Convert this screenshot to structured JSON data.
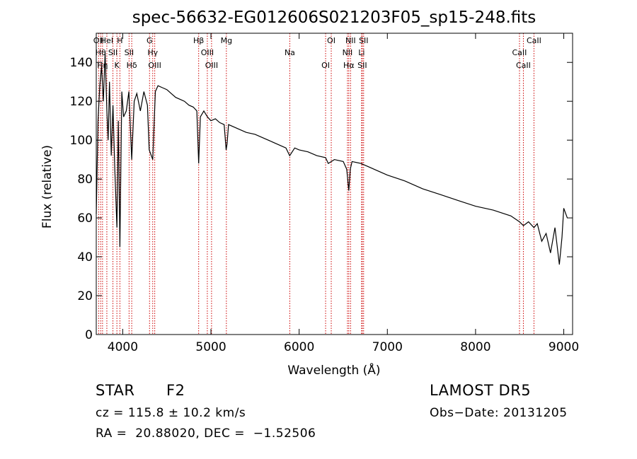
{
  "chart_data": {
    "type": "line",
    "title": "spec-56632-EG012606S021203F05_sp15-248.fits",
    "xlabel": "Wavelength (Å)",
    "ylabel": "Flux (relative)",
    "xlim": [
      3700,
      9100
    ],
    "ylim": [
      0,
      155
    ],
    "xticks": [
      4000,
      5000,
      6000,
      7000,
      8000,
      9000
    ],
    "yticks": [
      0,
      20,
      40,
      60,
      80,
      100,
      120,
      140
    ],
    "grid": false,
    "series": [
      {
        "x": [
          3700,
          3720,
          3740,
          3760,
          3780,
          3800,
          3820,
          3835,
          3850,
          3870,
          3889,
          3910,
          3934,
          3950,
          3968,
          3990,
          4010,
          4040,
          4070,
          4102,
          4130,
          4160,
          4200,
          4240,
          4280,
          4300,
          4340,
          4370,
          4400,
          4450,
          4500,
          4550,
          4600,
          4650,
          4700,
          4750,
          4800,
          4840,
          4861,
          4880,
          4920,
          4960,
          5000,
          5050,
          5100,
          5150,
          5172,
          5183,
          5200,
          5300,
          5400,
          5500,
          5600,
          5700,
          5800,
          5850,
          5893,
          5950,
          6000,
          6100,
          6200,
          6300,
          6330,
          6400,
          6500,
          6540,
          6563,
          6580,
          6600,
          6700,
          6800,
          6900,
          7000,
          7200,
          7400,
          7600,
          7800,
          8000,
          8200,
          8400,
          8498,
          8542,
          8600,
          8662,
          8700,
          8750,
          8800,
          8850,
          8900,
          8950,
          8980,
          9000,
          9040
        ],
        "y": [
          62,
          110,
          128,
          138,
          120,
          145,
          115,
          100,
          130,
          92,
          118,
          85,
          55,
          110,
          45,
          125,
          112,
          115,
          125,
          90,
          120,
          124,
          115,
          125,
          118,
          95,
          90,
          125,
          128,
          127,
          126,
          124,
          122,
          121,
          120,
          118,
          117,
          115,
          88,
          112,
          115,
          112,
          110,
          111,
          109,
          108,
          95,
          98,
          108,
          106,
          104,
          103,
          101,
          99,
          97,
          96,
          92,
          96,
          95,
          94,
          92,
          91,
          88,
          90,
          89,
          85,
          74,
          85,
          89,
          88,
          86,
          84,
          82,
          79,
          75,
          72,
          69,
          66,
          64,
          61,
          58,
          56,
          58,
          55,
          57,
          48,
          52,
          42,
          55,
          36,
          50,
          65,
          60
        ]
      }
    ],
    "line_markers": [
      {
        "wavelength": 3727,
        "label": "OII"
      },
      {
        "wavelength": 3750,
        "label": "Hθ"
      },
      {
        "wavelength": 3771,
        "label": "Hη"
      },
      {
        "wavelength": 3820,
        "label": "HeI"
      },
      {
        "wavelength": 3889,
        "label": "SII"
      },
      {
        "wavelength": 3934,
        "label": "K"
      },
      {
        "wavelength": 3968,
        "label": "H"
      },
      {
        "wavelength": 4072,
        "label": "SII"
      },
      {
        "wavelength": 4102,
        "label": "Hδ"
      },
      {
        "wavelength": 4304,
        "label": "G"
      },
      {
        "wavelength": 4340,
        "label": "Hγ"
      },
      {
        "wavelength": 4363,
        "label": "OIII"
      },
      {
        "wavelength": 4861,
        "label": "Hβ"
      },
      {
        "wavelength": 4959,
        "label": "OIII"
      },
      {
        "wavelength": 5007,
        "label": "OIII"
      },
      {
        "wavelength": 5175,
        "label": "Mg"
      },
      {
        "wavelength": 5894,
        "label": "Na"
      },
      {
        "wavelength": 6300,
        "label": "OI"
      },
      {
        "wavelength": 6364,
        "label": "OI"
      },
      {
        "wavelength": 6548,
        "label": "NII"
      },
      {
        "wavelength": 6563,
        "label": "Hα"
      },
      {
        "wavelength": 6583,
        "label": "NII"
      },
      {
        "wavelength": 6708,
        "label": "Li"
      },
      {
        "wavelength": 6716,
        "label": "SII"
      },
      {
        "wavelength": 6731,
        "label": "SII"
      },
      {
        "wavelength": 8498,
        "label": "CaII"
      },
      {
        "wavelength": 8542,
        "label": "CaII"
      },
      {
        "wavelength": 8662,
        "label": "CaII"
      }
    ]
  },
  "info": {
    "object_class": "STAR",
    "subclass": "F2",
    "survey": "LAMOST DR5",
    "redshift_line": "cz = 115.8 ± 10.2 km/s",
    "obs_date_line": "Obs−Date: 20131205",
    "coords_line": "RA =  20.88020, DEC =  −1.52506"
  },
  "colors": {
    "spectrum": "#000000",
    "marker_lines": "#cc0000",
    "text": "#000000",
    "background": "#ffffff"
  }
}
